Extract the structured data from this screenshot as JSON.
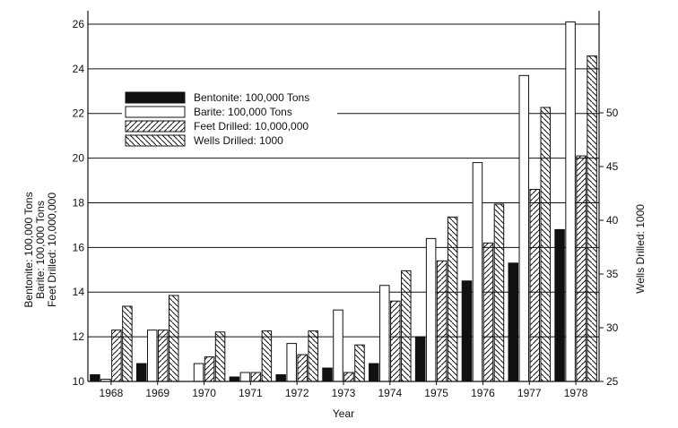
{
  "chart_data": {
    "type": "bar",
    "categories": [
      "1968",
      "1969",
      "1970",
      "1971",
      "1972",
      "1973",
      "1974",
      "1975",
      "1976",
      "1977",
      "1978"
    ],
    "series": [
      {
        "name": "Bentonite: 100,000 Tons",
        "axis": "left",
        "pattern": "solid",
        "values": [
          10.3,
          10.8,
          10.0,
          10.2,
          10.3,
          10.6,
          10.8,
          12.0,
          14.5,
          15.3,
          16.8
        ]
      },
      {
        "name": "Barite: 100,000 Tons",
        "axis": "left",
        "pattern": "hollow",
        "values": [
          10.1,
          12.3,
          10.8,
          10.4,
          11.7,
          13.2,
          14.3,
          16.4,
          19.8,
          23.7,
          26.1
        ]
      },
      {
        "name": "Feet Drilled: 10,000,000",
        "axis": "left",
        "pattern": "hatch-right",
        "values": [
          12.3,
          12.3,
          11.1,
          10.4,
          11.2,
          10.4,
          13.6,
          15.4,
          16.2,
          18.6,
          20.1
        ]
      },
      {
        "name": "Wells Drilled: 1000",
        "axis": "right",
        "pattern": "hatch-left",
        "values": [
          32.0,
          33.0,
          29.6,
          29.7,
          29.7,
          28.4,
          35.3,
          40.3,
          41.5,
          50.5,
          55.3
        ]
      }
    ],
    "xlabel": "Year",
    "ylabel_left": [
      "Bentonite: 100,000 Tons",
      "Barite: 100,000 Tons",
      "Feet Drilled: 10,000,000"
    ],
    "ylabel_right": "Wells Drilled: 1000",
    "ylim_left": [
      10,
      26.6
    ],
    "yticks_left": [
      10,
      12,
      14,
      16,
      18,
      20,
      22,
      24,
      26
    ],
    "ylim_right": [
      25,
      59.5
    ],
    "yticks_right": [
      25,
      30,
      35,
      40,
      45,
      50
    ],
    "grid": "horizontal",
    "legend_position": "upper-left"
  }
}
